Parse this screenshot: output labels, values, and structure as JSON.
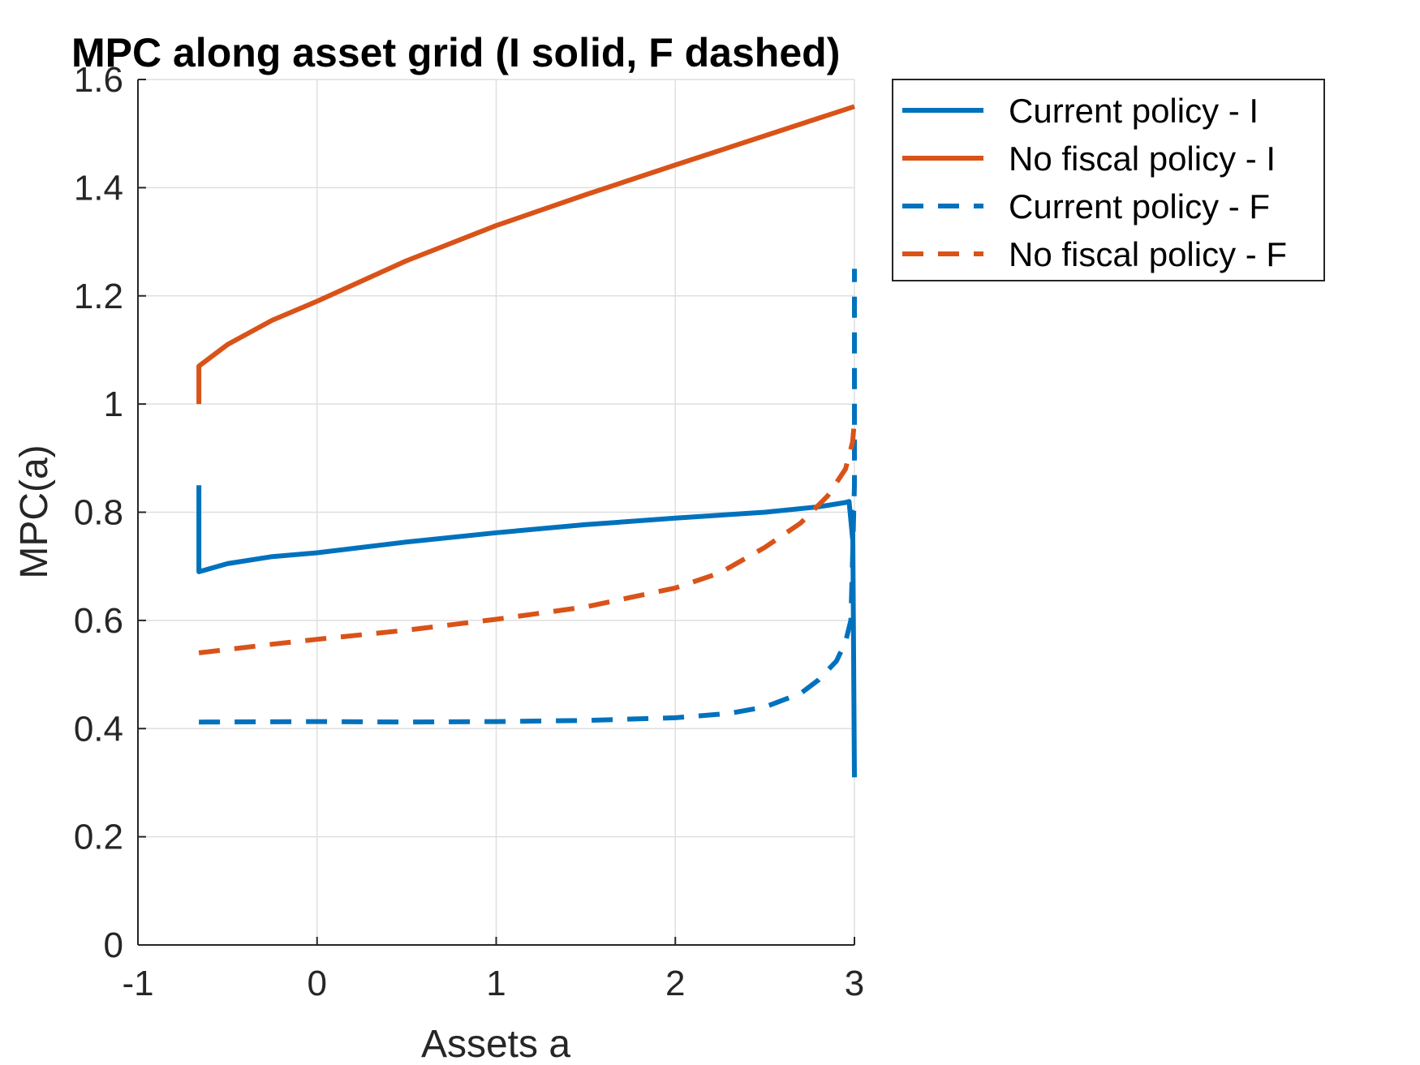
{
  "chart_data": {
    "type": "line",
    "title": "MPC along asset grid (I solid, F dashed)",
    "xlabel": "Assets a",
    "ylabel": "MPC(a)",
    "xlim": [
      -1,
      3
    ],
    "ylim": [
      0,
      1.6
    ],
    "xticks": [
      -1,
      0,
      1,
      2,
      3
    ],
    "xtick_labels": [
      "-1",
      "0",
      "1",
      "2",
      "3"
    ],
    "yticks": [
      0,
      0.2,
      0.4,
      0.6,
      0.8,
      1,
      1.2,
      1.4,
      1.6
    ],
    "ytick_labels": [
      "0",
      "0.2",
      "0.4",
      "0.6",
      "0.8",
      "1",
      "1.2",
      "1.4",
      "1.6"
    ],
    "grid": true,
    "legend": "outside-top-right",
    "series": [
      {
        "name": "Current policy - I",
        "color": "#0072BD",
        "dash": "solid",
        "x": [
          -0.66,
          -0.66,
          -0.5,
          -0.25,
          0,
          0.5,
          1,
          1.5,
          2,
          2.5,
          2.8,
          2.95,
          2.97,
          2.99,
          2.99,
          3.0
        ],
        "y": [
          0.85,
          0.69,
          0.705,
          0.718,
          0.725,
          0.745,
          0.762,
          0.777,
          0.789,
          0.8,
          0.81,
          0.818,
          0.82,
          0.75,
          0.8,
          0.31
        ]
      },
      {
        "name": "No fiscal policy - I",
        "color": "#D95319",
        "dash": "solid",
        "x": [
          -0.66,
          -0.66,
          -0.5,
          -0.25,
          0,
          0.5,
          1,
          1.5,
          2,
          2.5,
          3.0
        ],
        "y": [
          1.0,
          1.07,
          1.11,
          1.155,
          1.19,
          1.265,
          1.33,
          1.387,
          1.442,
          1.496,
          1.55
        ]
      },
      {
        "name": "Current policy - F",
        "color": "#0072BD",
        "dash": "dashed",
        "x": [
          -0.66,
          0,
          0.5,
          1,
          1.5,
          2,
          2.3,
          2.5,
          2.7,
          2.8,
          2.9,
          2.95,
          2.98,
          2.99,
          3.0,
          3.0,
          3.0
        ],
        "y": [
          0.412,
          0.413,
          0.412,
          0.413,
          0.415,
          0.42,
          0.428,
          0.44,
          0.465,
          0.49,
          0.525,
          0.56,
          0.6,
          0.72,
          0.85,
          1.05,
          1.25
        ]
      },
      {
        "name": "No fiscal policy - F",
        "color": "#D95319",
        "dash": "dashed",
        "x": [
          -0.66,
          -0.25,
          0,
          0.5,
          1,
          1.5,
          2,
          2.25,
          2.5,
          2.7,
          2.85,
          2.95,
          2.99,
          3.0
        ],
        "y": [
          0.54,
          0.556,
          0.565,
          0.582,
          0.602,
          0.625,
          0.66,
          0.688,
          0.735,
          0.78,
          0.83,
          0.88,
          0.93,
          0.97
        ]
      }
    ]
  }
}
